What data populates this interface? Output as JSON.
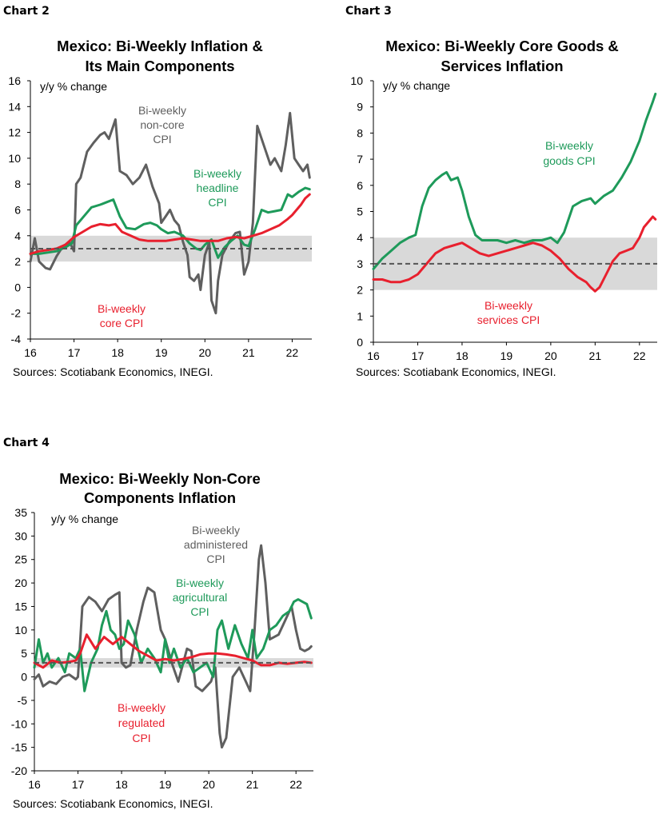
{
  "colors": {
    "grey": "#5f5f5f",
    "green": "#1e9a5a",
    "red": "#e8202e",
    "band": "#d9d9d9",
    "target": "#555555"
  },
  "chart_data": [
    {
      "panel_label": "Chart 2",
      "type": "line",
      "title": [
        "Mexico: Bi-Weekly Inflation &",
        "Its Main Components"
      ],
      "ylabel": "y/y % change",
      "source": "Sources: Scotiabank Economics, INEGI.",
      "ylim": [
        -4,
        16
      ],
      "yticks": [
        16,
        14,
        12,
        10,
        8,
        6,
        4,
        2,
        0,
        -2,
        -4
      ],
      "xlim": [
        2016,
        2022.45
      ],
      "xticks": [
        "16",
        "17",
        "18",
        "19",
        "20",
        "21",
        "22"
      ],
      "band": [
        2,
        4
      ],
      "target": 3,
      "series": [
        {
          "name": "Bi-weekly non-core CPI",
          "color": "grey",
          "x": [
            2016.0,
            2016.1,
            2016.2,
            2016.35,
            2016.45,
            2016.6,
            2016.75,
            2016.9,
            2017.0,
            2017.05,
            2017.15,
            2017.3,
            2017.45,
            2017.6,
            2017.7,
            2017.8,
            2017.9,
            2017.95,
            2018.05,
            2018.2,
            2018.35,
            2018.5,
            2018.65,
            2018.8,
            2018.95,
            2019.0,
            2019.1,
            2019.2,
            2019.3,
            2019.4,
            2019.5,
            2019.6,
            2019.65,
            2019.75,
            2019.85,
            2019.9,
            2020.0,
            2020.1,
            2020.15,
            2020.25,
            2020.3,
            2020.4,
            2020.55,
            2020.7,
            2020.8,
            2020.9,
            2021.0,
            2021.1,
            2021.2,
            2021.35,
            2021.5,
            2021.6,
            2021.75,
            2021.85,
            2021.95,
            2022.05,
            2022.15,
            2022.25,
            2022.35,
            2022.4
          ],
          "y": [
            2.0,
            3.8,
            2.0,
            1.5,
            1.4,
            2.4,
            3.2,
            3.5,
            2.8,
            8.0,
            8.5,
            10.5,
            11.2,
            11.8,
            12.0,
            11.5,
            12.5,
            13.0,
            9.0,
            8.7,
            8.0,
            8.5,
            9.5,
            7.8,
            6.5,
            5.0,
            5.5,
            6.0,
            5.2,
            4.8,
            3.5,
            2.5,
            0.8,
            0.5,
            1.0,
            -0.2,
            2.5,
            3.5,
            -1.0,
            -2.0,
            0.5,
            2.5,
            3.5,
            4.2,
            4.3,
            1.0,
            2.0,
            5.0,
            12.5,
            11.0,
            9.5,
            10.0,
            9.0,
            11.0,
            13.5,
            10.0,
            9.5,
            9.0,
            9.5,
            8.5
          ]
        },
        {
          "name": "Bi-weekly headline CPI",
          "color": "green",
          "x": [
            2016.0,
            2016.2,
            2016.4,
            2016.6,
            2016.8,
            2016.95,
            2017.05,
            2017.2,
            2017.4,
            2017.6,
            2017.75,
            2017.9,
            2018.05,
            2018.2,
            2018.4,
            2018.6,
            2018.75,
            2018.9,
            2019.0,
            2019.15,
            2019.3,
            2019.5,
            2019.65,
            2019.8,
            2019.9,
            2020.0,
            2020.15,
            2020.3,
            2020.45,
            2020.6,
            2020.75,
            2020.9,
            2021.0,
            2021.15,
            2021.3,
            2021.45,
            2021.6,
            2021.75,
            2021.9,
            2022.0,
            2022.15,
            2022.3,
            2022.4
          ],
          "y": [
            2.6,
            2.6,
            2.7,
            2.8,
            3.1,
            3.4,
            4.8,
            5.4,
            6.2,
            6.4,
            6.6,
            6.8,
            5.5,
            4.6,
            4.5,
            4.9,
            5.0,
            4.8,
            4.5,
            4.2,
            4.3,
            4.0,
            3.4,
            3.0,
            2.9,
            3.3,
            3.7,
            2.3,
            3.1,
            3.6,
            4.0,
            3.3,
            3.2,
            4.5,
            6.0,
            5.8,
            5.9,
            6.0,
            7.2,
            7.0,
            7.4,
            7.7,
            7.6
          ]
        },
        {
          "name": "Bi-weekly core CPI",
          "color": "red",
          "x": [
            2016.0,
            2016.2,
            2016.4,
            2016.6,
            2016.8,
            2017.0,
            2017.2,
            2017.4,
            2017.6,
            2017.8,
            2017.95,
            2018.1,
            2018.3,
            2018.5,
            2018.7,
            2018.9,
            2019.1,
            2019.3,
            2019.5,
            2019.7,
            2019.9,
            2020.1,
            2020.3,
            2020.5,
            2020.7,
            2020.9,
            2021.1,
            2021.3,
            2021.5,
            2021.7,
            2021.9,
            2022.0,
            2022.1,
            2022.2,
            2022.3,
            2022.4
          ],
          "y": [
            2.6,
            2.8,
            2.9,
            3.0,
            3.3,
            3.9,
            4.3,
            4.7,
            4.9,
            4.8,
            4.9,
            4.3,
            4.0,
            3.7,
            3.6,
            3.6,
            3.6,
            3.7,
            3.8,
            3.7,
            3.6,
            3.6,
            3.6,
            3.8,
            3.9,
            3.8,
            4.0,
            4.2,
            4.5,
            4.8,
            5.3,
            5.6,
            6.0,
            6.4,
            6.9,
            7.2
          ]
        }
      ],
      "annotations": [
        {
          "lines": [
            "Bi-weekly",
            "non-core",
            "CPI"
          ],
          "color": "grey"
        },
        {
          "lines": [
            "Bi-weekly",
            "headline",
            "CPI"
          ],
          "color": "green"
        },
        {
          "lines": [
            "Bi-weekly",
            "core CPI"
          ],
          "color": "red"
        }
      ]
    },
    {
      "panel_label": "Chart 3",
      "type": "line",
      "title": [
        "Mexico: Bi-Weekly Core Goods &",
        "Services Inflation"
      ],
      "ylabel": "y/y % change",
      "source": "Sources: Scotiabank Economics, INEGI.",
      "ylim": [
        0,
        10
      ],
      "yticks": [
        10,
        9,
        8,
        7,
        6,
        5,
        4,
        3,
        2,
        1,
        0
      ],
      "xlim": [
        2016,
        2022.4
      ],
      "xticks": [
        "16",
        "17",
        "18",
        "19",
        "20",
        "21",
        "22"
      ],
      "band": [
        2,
        4
      ],
      "target": 3,
      "series": [
        {
          "name": "Bi-weekly goods CPI",
          "color": "green",
          "x": [
            2016.0,
            2016.2,
            2016.4,
            2016.6,
            2016.8,
            2016.95,
            2017.1,
            2017.25,
            2017.4,
            2017.55,
            2017.65,
            2017.75,
            2017.9,
            2018.0,
            2018.15,
            2018.3,
            2018.45,
            2018.6,
            2018.8,
            2019.0,
            2019.2,
            2019.4,
            2019.6,
            2019.8,
            2020.0,
            2020.15,
            2020.3,
            2020.5,
            2020.7,
            2020.9,
            2021.0,
            2021.2,
            2021.4,
            2021.6,
            2021.8,
            2022.0,
            2022.15,
            2022.3,
            2022.36
          ],
          "y": [
            2.8,
            3.2,
            3.5,
            3.8,
            4.0,
            4.1,
            5.2,
            5.9,
            6.2,
            6.4,
            6.5,
            6.2,
            6.3,
            5.8,
            4.8,
            4.1,
            3.9,
            3.9,
            3.9,
            3.8,
            3.9,
            3.8,
            3.9,
            3.9,
            4.0,
            3.8,
            4.2,
            5.2,
            5.4,
            5.5,
            5.3,
            5.6,
            5.8,
            6.3,
            6.9,
            7.7,
            8.5,
            9.2,
            9.5
          ]
        },
        {
          "name": "Bi-weekly services CPI",
          "color": "red",
          "x": [
            2016.0,
            2016.2,
            2016.4,
            2016.6,
            2016.8,
            2017.0,
            2017.2,
            2017.4,
            2017.6,
            2017.8,
            2018.0,
            2018.2,
            2018.4,
            2018.6,
            2018.8,
            2019.0,
            2019.2,
            2019.4,
            2019.6,
            2019.8,
            2020.0,
            2020.2,
            2020.4,
            2020.6,
            2020.8,
            2020.9,
            2021.0,
            2021.1,
            2021.25,
            2021.4,
            2021.55,
            2021.7,
            2021.85,
            2022.0,
            2022.1,
            2022.2,
            2022.3,
            2022.36
          ],
          "y": [
            2.4,
            2.4,
            2.3,
            2.3,
            2.4,
            2.6,
            3.0,
            3.4,
            3.6,
            3.7,
            3.8,
            3.6,
            3.4,
            3.3,
            3.4,
            3.5,
            3.6,
            3.7,
            3.8,
            3.7,
            3.5,
            3.2,
            2.8,
            2.5,
            2.3,
            2.1,
            1.95,
            2.1,
            2.6,
            3.1,
            3.4,
            3.5,
            3.6,
            4.0,
            4.4,
            4.6,
            4.8,
            4.7
          ]
        }
      ],
      "annotations": [
        {
          "lines": [
            "Bi-weekly",
            "goods CPI"
          ],
          "color": "green"
        },
        {
          "lines": [
            "Bi-weekly",
            "services CPI"
          ],
          "color": "red"
        }
      ]
    },
    {
      "panel_label": "Chart 4",
      "type": "line",
      "title": [
        "Mexico: Bi-Weekly Non-Core",
        "Components Inflation"
      ],
      "ylabel": "y/y % change",
      "source": "Sources: Scotiabank Economics, INEGI.",
      "ylim": [
        -20,
        35
      ],
      "yticks": [
        35,
        30,
        25,
        20,
        15,
        10,
        5,
        0,
        -5,
        -10,
        -15,
        -20
      ],
      "xlim": [
        2016,
        2022.4
      ],
      "xticks": [
        "16",
        "17",
        "18",
        "19",
        "20",
        "21",
        "22"
      ],
      "band": [
        2,
        4
      ],
      "target": 3,
      "series": [
        {
          "name": "Bi-weekly administered CPI",
          "color": "grey",
          "x": [
            2016.0,
            2016.1,
            2016.2,
            2016.35,
            2016.5,
            2016.65,
            2016.8,
            2016.95,
            2017.0,
            2017.1,
            2017.25,
            2017.4,
            2017.55,
            2017.7,
            2017.85,
            2017.95,
            2018.0,
            2018.1,
            2018.2,
            2018.35,
            2018.5,
            2018.6,
            2018.75,
            2018.9,
            2019.0,
            2019.15,
            2019.3,
            2019.5,
            2019.6,
            2019.7,
            2019.85,
            2019.95,
            2020.05,
            2020.15,
            2020.25,
            2020.3,
            2020.4,
            2020.55,
            2020.7,
            2020.85,
            2020.95,
            2021.05,
            2021.15,
            2021.2,
            2021.3,
            2021.4,
            2021.6,
            2021.75,
            2021.9,
            2022.0,
            2022.1,
            2022.2,
            2022.3,
            2022.35
          ],
          "y": [
            -0.5,
            0.5,
            -2.0,
            -1.0,
            -1.5,
            0.0,
            0.5,
            -0.5,
            0.0,
            15.0,
            17.0,
            16.0,
            14.0,
            16.5,
            17.5,
            18.0,
            3.0,
            2.0,
            2.5,
            10.0,
            16.0,
            19.0,
            18.0,
            10.0,
            8.0,
            3.0,
            -1.0,
            6.0,
            5.5,
            -2.0,
            -3.0,
            -2.0,
            -1.0,
            2.0,
            -12.0,
            -15.0,
            -13.0,
            0.0,
            2.0,
            -1.0,
            -3.0,
            10.0,
            25.0,
            28.0,
            20.0,
            8.0,
            9.0,
            12.0,
            15.0,
            10.0,
            6.0,
            5.5,
            6.0,
            6.5
          ]
        },
        {
          "name": "Bi-weekly agricultural CPI",
          "color": "green",
          "x": [
            2016.0,
            2016.1,
            2016.2,
            2016.3,
            2016.4,
            2016.55,
            2016.7,
            2016.8,
            2016.95,
            2017.05,
            2017.15,
            2017.3,
            2017.45,
            2017.55,
            2017.65,
            2017.75,
            2017.85,
            2017.95,
            2018.05,
            2018.15,
            2018.3,
            2018.45,
            2018.6,
            2018.75,
            2018.9,
            2019.0,
            2019.1,
            2019.2,
            2019.35,
            2019.5,
            2019.65,
            2019.8,
            2019.95,
            2020.1,
            2020.2,
            2020.3,
            2020.45,
            2020.6,
            2020.75,
            2020.9,
            2021.0,
            2021.1,
            2021.25,
            2021.4,
            2021.55,
            2021.7,
            2021.85,
            2021.95,
            2022.05,
            2022.15,
            2022.25,
            2022.35
          ],
          "y": [
            2.0,
            8.0,
            3.0,
            5.0,
            2.0,
            4.0,
            1.0,
            5.0,
            4.0,
            6.0,
            -3.0,
            3.0,
            6.0,
            11.0,
            14.0,
            10.0,
            9.0,
            6.0,
            7.0,
            12.0,
            9.0,
            3.0,
            6.0,
            4.0,
            1.0,
            8.0,
            3.0,
            6.0,
            2.0,
            4.0,
            1.0,
            2.0,
            3.0,
            0.0,
            10.0,
            12.0,
            6.0,
            11.0,
            7.0,
            4.0,
            10.0,
            4.0,
            6.0,
            10.0,
            11.0,
            13.0,
            14.0,
            16.0,
            16.5,
            16.0,
            15.5,
            12.5
          ]
        },
        {
          "name": "Bi-weekly regulated CPI",
          "color": "red",
          "x": [
            2016.0,
            2016.2,
            2016.4,
            2016.6,
            2016.8,
            2016.95,
            2017.05,
            2017.2,
            2017.4,
            2017.6,
            2017.8,
            2018.0,
            2018.2,
            2018.4,
            2018.6,
            2018.8,
            2019.0,
            2019.2,
            2019.4,
            2019.6,
            2019.8,
            2020.0,
            2020.2,
            2020.4,
            2020.6,
            2020.8,
            2021.0,
            2021.2,
            2021.4,
            2021.6,
            2021.8,
            2022.0,
            2022.2,
            2022.35
          ],
          "y": [
            3.0,
            2.0,
            3.5,
            3.0,
            3.2,
            3.5,
            5.0,
            9.0,
            6.0,
            8.5,
            7.0,
            8.5,
            7.0,
            5.5,
            4.5,
            3.5,
            3.8,
            3.5,
            3.8,
            4.2,
            4.8,
            5.0,
            5.0,
            4.8,
            4.5,
            4.0,
            3.5,
            2.5,
            2.5,
            3.0,
            2.8,
            3.0,
            3.2,
            3.0
          ]
        }
      ],
      "annotations": [
        {
          "lines": [
            "Bi-weekly",
            "administered",
            "CPI"
          ],
          "color": "grey"
        },
        {
          "lines": [
            "Bi-weekly",
            "agricultural",
            "CPI"
          ],
          "color": "green"
        },
        {
          "lines": [
            "Bi-weekly",
            "regulated",
            "CPI"
          ],
          "color": "red"
        }
      ]
    }
  ]
}
